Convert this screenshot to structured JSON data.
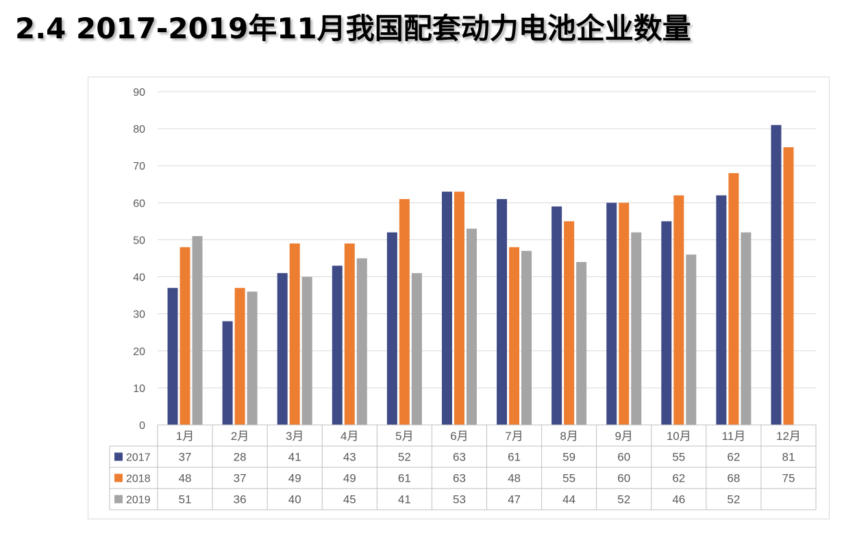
{
  "title": "2.4 2017-2019年11月我国配套动力电池企业数量",
  "chart_data": {
    "type": "bar",
    "title": "",
    "xlabel": "",
    "ylabel": "",
    "ylim": [
      0,
      90
    ],
    "ytick_step": 10,
    "yticks": [
      "0",
      "10",
      "20",
      "30",
      "40",
      "50",
      "60",
      "70",
      "80",
      "90"
    ],
    "grid": true,
    "legend": "data-table-left",
    "categories": [
      "1月",
      "2月",
      "3月",
      "4月",
      "5月",
      "6月",
      "7月",
      "8月",
      "9月",
      "10月",
      "11月",
      "12月"
    ],
    "series": [
      {
        "name": "2017",
        "color": "#3f4b86",
        "values": [
          37,
          28,
          41,
          43,
          52,
          63,
          61,
          59,
          60,
          55,
          62,
          81
        ]
      },
      {
        "name": "2018",
        "color": "#ed7d31",
        "values": [
          48,
          37,
          49,
          49,
          61,
          63,
          48,
          55,
          60,
          62,
          68,
          75
        ]
      },
      {
        "name": "2019",
        "color": "#a5a5a5",
        "values": [
          51,
          36,
          40,
          45,
          41,
          53,
          47,
          44,
          52,
          46,
          52,
          null
        ]
      }
    ]
  }
}
